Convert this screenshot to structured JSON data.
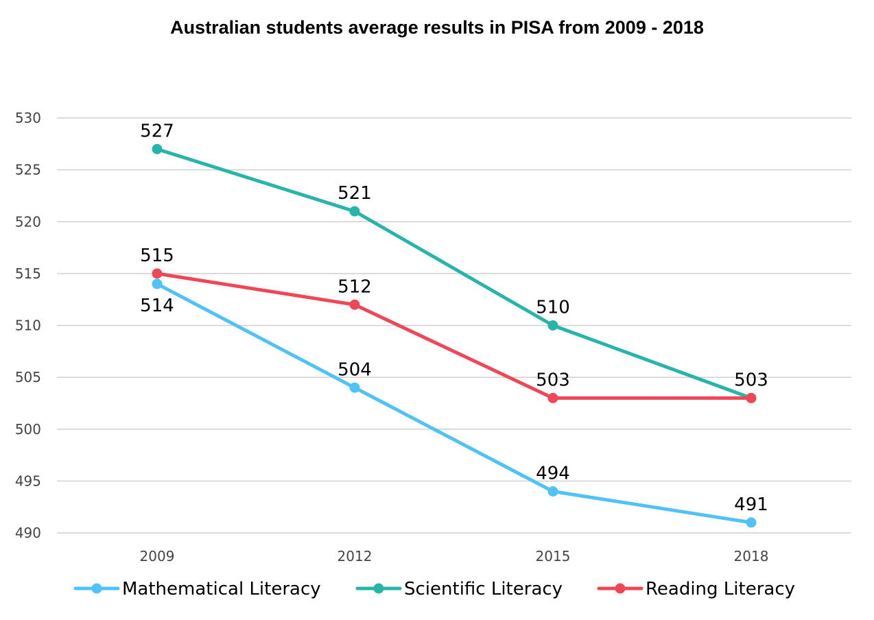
{
  "chart_data": {
    "type": "line",
    "title": "Australian students average results in PISA from 2009 - 2018",
    "xlabel": "",
    "ylabel": "",
    "categories": [
      "2009",
      "2012",
      "2015",
      "2018"
    ],
    "ylim": [
      490,
      530
    ],
    "yticks": [
      490,
      495,
      500,
      505,
      510,
      515,
      520,
      525,
      530
    ],
    "grid": true,
    "legend_position": "bottom",
    "series": [
      {
        "name": "Mathematical Literacy",
        "color": "#4FC3F7",
        "values": [
          514,
          504,
          494,
          491
        ],
        "label_placement": [
          "below",
          "above",
          "above",
          "above"
        ]
      },
      {
        "name": "Scientific Literacy",
        "color": "#26B5A8",
        "values": [
          527,
          521,
          510,
          503
        ],
        "label_placement": [
          "above",
          "above",
          "above",
          "none"
        ]
      },
      {
        "name": "Reading Literacy",
        "color": "#EF4755",
        "values": [
          515,
          512,
          503,
          503
        ],
        "label_placement": [
          "above",
          "above",
          "above",
          "above"
        ]
      }
    ]
  }
}
